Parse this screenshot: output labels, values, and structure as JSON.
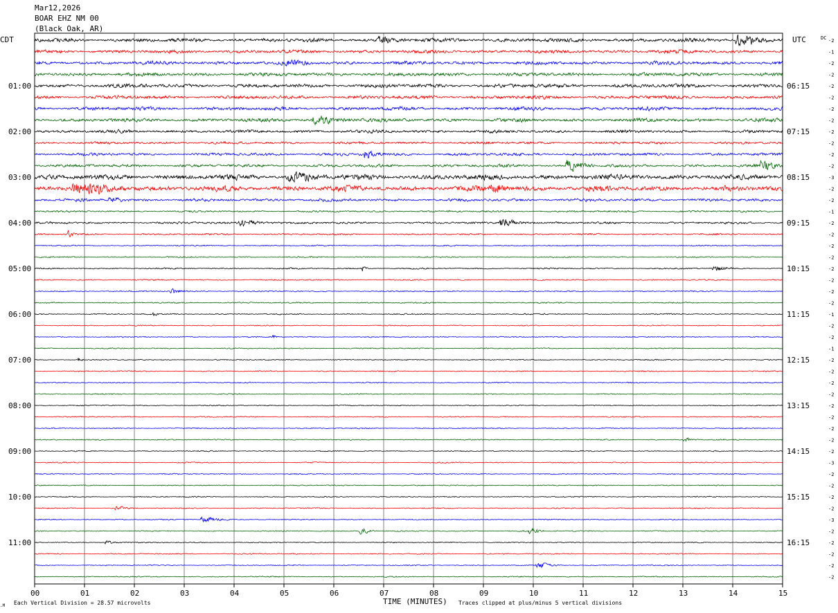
{
  "header": {
    "date": "Mar12,2026",
    "station": "BOAR EHZ NM 00",
    "location": "(Black Oak, AR)"
  },
  "left_zone": "CDT",
  "right_zone": "UTC",
  "dc_label": "DC",
  "footer": {
    "scale_note": "Each Vertical Division =   28.57 microvolts",
    "axis_title": "TIME (MINUTES)",
    "clip_note": "Traces clipped at plus/minus 5 vertical divisions"
  },
  "colors": {
    "trace_cycle": [
      "#000000",
      "#ff0000",
      "#0000ff",
      "#006400"
    ],
    "grid": "#808080",
    "background": "#ffffff"
  },
  "chart_data": {
    "type": "helicorder",
    "xlabel": "TIME (MINUTES)",
    "x_ticks": [
      "00",
      "01",
      "02",
      "03",
      "04",
      "05",
      "06",
      "07",
      "08",
      "09",
      "10",
      "11",
      "12",
      "13",
      "14",
      "15"
    ],
    "xlim": [
      0,
      15
    ],
    "row_count": 48,
    "minutes_per_row": 15,
    "left_hour_labels": [
      "01:00",
      "02:00",
      "03:00",
      "04:00",
      "05:00",
      "06:00",
      "07:00",
      "08:00",
      "09:00",
      "10:00",
      "11:00"
    ],
    "right_hour_labels": [
      "06:15",
      "07:15",
      "08:15",
      "09:15",
      "10:15",
      "11:15",
      "12:15",
      "13:15",
      "14:15",
      "15:15",
      "16:15"
    ],
    "dc_offsets": [
      -2,
      -1,
      -2,
      -2,
      -2,
      -2,
      -2,
      -2,
      -2,
      -2,
      -2,
      -2,
      -3,
      -2,
      -2,
      -1,
      -2,
      -2,
      -2,
      -2,
      -2,
      -2,
      -2,
      -2,
      -1,
      -2,
      -2,
      -1,
      -2,
      -2,
      -2,
      -2,
      -2,
      -2,
      -2,
      -2,
      -2,
      -3,
      -2,
      -2,
      -2,
      -2,
      -3,
      -2,
      -2,
      -2,
      -2,
      -2
    ],
    "row_activity": [
      2.2,
      2.0,
      2.0,
      2.0,
      2.2,
      2.0,
      2.0,
      2.0,
      1.8,
      1.4,
      1.6,
      1.6,
      3.0,
      3.0,
      1.6,
      1.0,
      1.2,
      0.9,
      0.7,
      0.7,
      0.8,
      0.7,
      0.7,
      0.7,
      0.7,
      0.6,
      0.6,
      0.6,
      0.6,
      0.6,
      0.6,
      0.6,
      0.6,
      0.6,
      0.6,
      0.6,
      0.6,
      0.6,
      0.6,
      0.6,
      0.6,
      0.6,
      0.6,
      0.6,
      0.6,
      0.6,
      0.6,
      0.6
    ],
    "events": [
      {
        "row": 0,
        "minute": 14.3,
        "amplitude": 2.5,
        "duration": 0.8
      },
      {
        "row": 0,
        "minute": 7.0,
        "amplitude": 1.5,
        "duration": 0.5
      },
      {
        "row": 2,
        "minute": 5.2,
        "amplitude": 1.5,
        "duration": 0.6
      },
      {
        "row": 7,
        "minute": 5.8,
        "amplitude": 1.8,
        "duration": 0.8
      },
      {
        "row": 10,
        "minute": 6.7,
        "amplitude": 2.0,
        "duration": 0.3
      },
      {
        "row": 11,
        "minute": 10.8,
        "amplitude": 3.5,
        "duration": 0.5
      },
      {
        "row": 11,
        "minute": 14.7,
        "amplitude": 2.0,
        "duration": 0.5
      },
      {
        "row": 12,
        "minute": 5.3,
        "amplitude": 2.0,
        "duration": 0.8
      },
      {
        "row": 13,
        "minute": 1.2,
        "amplitude": 2.0,
        "duration": 1.5
      },
      {
        "row": 13,
        "minute": 9.3,
        "amplitude": 1.8,
        "duration": 0.6
      },
      {
        "row": 14,
        "minute": 1.6,
        "amplitude": 1.5,
        "duration": 0.4
      },
      {
        "row": 16,
        "minute": 9.5,
        "amplitude": 2.0,
        "duration": 0.6
      },
      {
        "row": 16,
        "minute": 4.3,
        "amplitude": 1.5,
        "duration": 0.7
      },
      {
        "row": 17,
        "minute": 0.7,
        "amplitude": 1.8,
        "duration": 0.2
      },
      {
        "row": 20,
        "minute": 6.6,
        "amplitude": 2.0,
        "duration": 0.1
      },
      {
        "row": 20,
        "minute": 13.7,
        "amplitude": 1.2,
        "duration": 0.4
      },
      {
        "row": 22,
        "minute": 2.8,
        "amplitude": 1.2,
        "duration": 0.3
      },
      {
        "row": 24,
        "minute": 2.4,
        "amplitude": 1.2,
        "duration": 0.1
      },
      {
        "row": 26,
        "minute": 4.8,
        "amplitude": 1.0,
        "duration": 0.1
      },
      {
        "row": 28,
        "minute": 0.9,
        "amplitude": 1.2,
        "duration": 0.1
      },
      {
        "row": 35,
        "minute": 13.1,
        "amplitude": 1.0,
        "duration": 0.3
      },
      {
        "row": 41,
        "minute": 1.7,
        "amplitude": 1.2,
        "duration": 0.3
      },
      {
        "row": 42,
        "minute": 3.5,
        "amplitude": 1.5,
        "duration": 0.6
      },
      {
        "row": 43,
        "minute": 6.6,
        "amplitude": 1.8,
        "duration": 0.3
      },
      {
        "row": 43,
        "minute": 10.0,
        "amplitude": 1.5,
        "duration": 0.3
      },
      {
        "row": 44,
        "minute": 1.5,
        "amplitude": 1.2,
        "duration": 0.3
      },
      {
        "row": 46,
        "minute": 10.2,
        "amplitude": 1.0,
        "duration": 0.5
      }
    ]
  }
}
